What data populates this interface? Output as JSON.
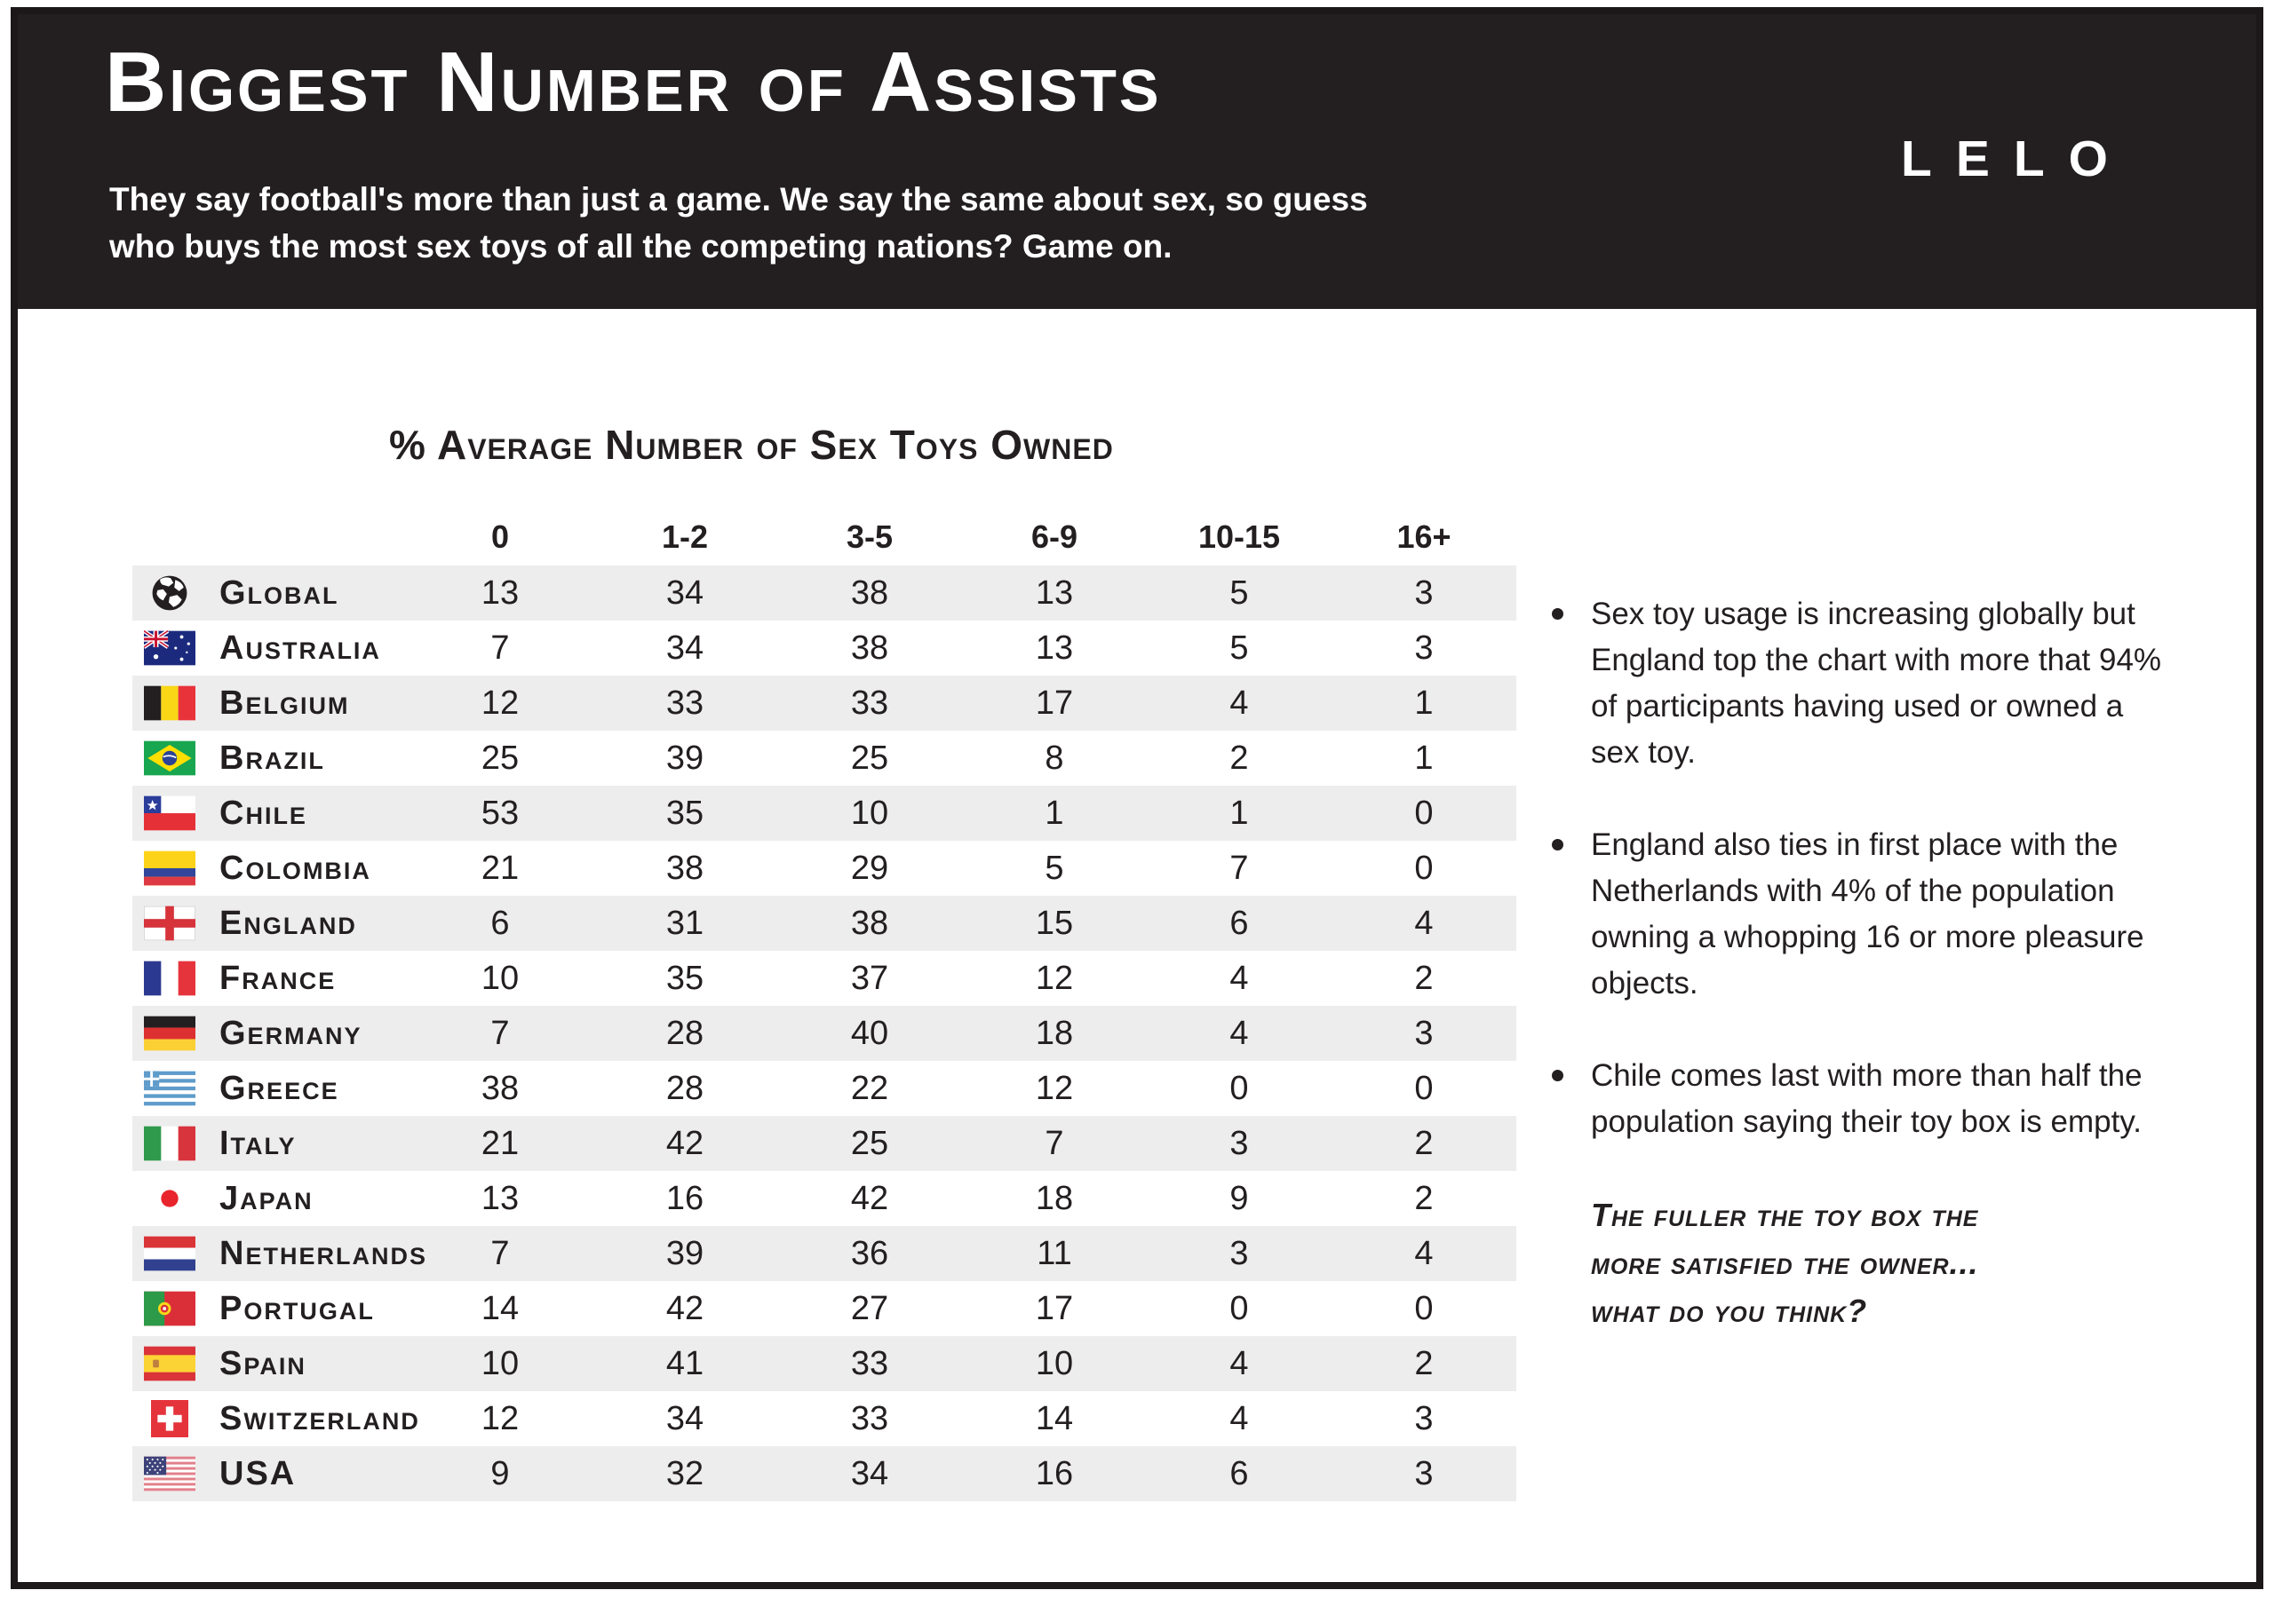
{
  "header": {
    "title": "Biggest Number of Assists",
    "subtitle_line1": "They say football's more than just a game. We say the same about sex, so guess",
    "subtitle_line2": "who buys the most sex toys of all the competing nations? Game on.",
    "brand": "LELO"
  },
  "chart_data": {
    "type": "table",
    "title": "% Average Number of Sex Toys Owned",
    "columns": [
      "0",
      "1-2",
      "3-5",
      "6-9",
      "10-15",
      "16+"
    ],
    "rows": [
      {
        "icon": "globe-icon",
        "label": "Global",
        "values": [
          13,
          34,
          38,
          13,
          5,
          3
        ]
      },
      {
        "icon": "flag-australia-icon",
        "label": "Australia",
        "values": [
          7,
          34,
          38,
          13,
          5,
          3
        ]
      },
      {
        "icon": "flag-belgium-icon",
        "label": "Belgium",
        "values": [
          12,
          33,
          33,
          17,
          4,
          1
        ]
      },
      {
        "icon": "flag-brazil-icon",
        "label": "Brazil",
        "values": [
          25,
          39,
          25,
          8,
          2,
          1
        ]
      },
      {
        "icon": "flag-chile-icon",
        "label": "Chile",
        "values": [
          53,
          35,
          10,
          1,
          1,
          0
        ]
      },
      {
        "icon": "flag-colombia-icon",
        "label": "Colombia",
        "values": [
          21,
          38,
          29,
          5,
          7,
          0
        ]
      },
      {
        "icon": "flag-england-icon",
        "label": "England",
        "values": [
          6,
          31,
          38,
          15,
          6,
          4
        ]
      },
      {
        "icon": "flag-france-icon",
        "label": "France",
        "values": [
          10,
          35,
          37,
          12,
          4,
          2
        ]
      },
      {
        "icon": "flag-germany-icon",
        "label": "Germany",
        "values": [
          7,
          28,
          40,
          18,
          4,
          3
        ]
      },
      {
        "icon": "flag-greece-icon",
        "label": "Greece",
        "values": [
          38,
          28,
          22,
          12,
          0,
          0
        ]
      },
      {
        "icon": "flag-italy-icon",
        "label": "Italy",
        "values": [
          21,
          42,
          25,
          7,
          3,
          2
        ]
      },
      {
        "icon": "flag-japan-icon",
        "label": "Japan",
        "values": [
          13,
          16,
          42,
          18,
          9,
          2
        ]
      },
      {
        "icon": "flag-netherlands-icon",
        "label": "Netherlands",
        "values": [
          7,
          39,
          36,
          11,
          3,
          4
        ]
      },
      {
        "icon": "flag-portugal-icon",
        "label": "Portugal",
        "values": [
          14,
          42,
          27,
          17,
          0,
          0
        ]
      },
      {
        "icon": "flag-spain-icon",
        "label": "Spain",
        "values": [
          10,
          41,
          33,
          10,
          4,
          2
        ]
      },
      {
        "icon": "flag-switzerland-icon",
        "label": "Switzerland",
        "values": [
          12,
          34,
          33,
          14,
          4,
          3
        ]
      },
      {
        "icon": "flag-usa-icon",
        "label": "USA",
        "values": [
          9,
          32,
          34,
          16,
          6,
          3
        ]
      }
    ]
  },
  "insights": {
    "bullets": [
      "Sex toy usage is increasing globally but England top the chart with more that 94% of participants having used or owned a sex toy.",
      "England also ties in first place with the Netherlands with 4% of the population owning a whopping 16 or more pleasure objects.",
      "Chile comes last with more than half the population saying their toy box is empty."
    ],
    "note_line1": "The fuller the toy box the",
    "note_line2": "more satisfied the owner...",
    "note_line3": "what do you think?"
  },
  "colors": {
    "header_bg": "#231f20",
    "row_stripe": "#ededed",
    "text_ink": "#231f20",
    "title_text": "#ffffff"
  }
}
